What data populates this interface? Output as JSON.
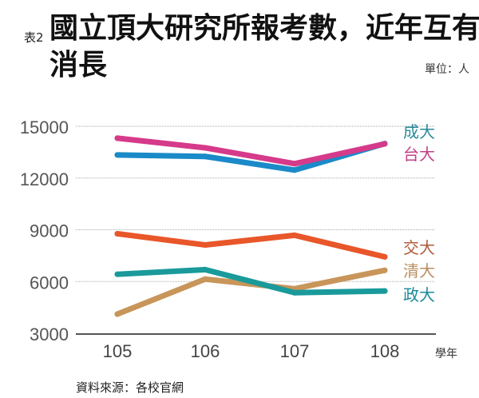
{
  "header": {
    "tag": "表2",
    "title": "國立頂大研究所報考數，近年互有消長",
    "unit": "單位：人"
  },
  "footer": {
    "source": "資料來源：各校官網"
  },
  "chart_data": {
    "type": "line",
    "title": "國立頂大研究所報考數，近年互有消長",
    "xlabel": "學年",
    "ylabel": "",
    "x": [
      "105",
      "106",
      "107",
      "108"
    ],
    "ylim": [
      3000,
      15000
    ],
    "yticks": [
      "3000",
      "6000",
      "9000",
      "12000",
      "15000"
    ],
    "grid": true,
    "series": [
      {
        "name": "成大",
        "color": "#1a8ac8",
        "label_color": "#2a8a9a",
        "values": [
          13340,
          13250,
          12460,
          14000
        ]
      },
      {
        "name": "台大",
        "color": "#d63a8a",
        "label_color": "#c0408a",
        "values": [
          14310,
          13750,
          12830,
          13980
        ]
      },
      {
        "name": "交大",
        "color": "#e8562a",
        "label_color": "#b05a3a",
        "values": [
          8770,
          8120,
          8680,
          7430
        ]
      },
      {
        "name": "清大",
        "color": "#c8955a",
        "label_color": "#b89060",
        "values": [
          4110,
          6140,
          5580,
          6650
        ]
      },
      {
        "name": "政大",
        "color": "#1a9a9a",
        "label_color": "#1a8a9a",
        "values": [
          6420,
          6690,
          5350,
          5450
        ]
      }
    ]
  }
}
